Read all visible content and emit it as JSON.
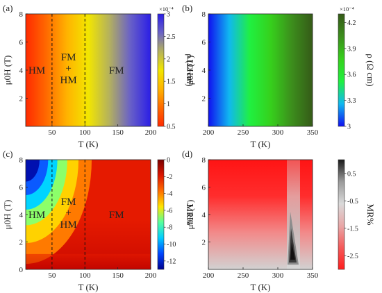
{
  "figure": {
    "panels": [
      "(a)",
      "(b)",
      "(c)",
      "(d)"
    ]
  },
  "chart_data": [
    {
      "type": "heatmap",
      "panel": "(a)",
      "xlabel": "T (K)",
      "ylabel": "μ0H (T)",
      "xlim": [
        10,
        200
      ],
      "ylim": [
        0,
        8
      ],
      "xticks": [
        "50",
        "100",
        "150",
        "200"
      ],
      "yticks": [
        "2",
        "4",
        "6",
        "8"
      ],
      "colorbar": {
        "label": "ρ (Ω cm)",
        "exponent": "×10⁻⁴",
        "ticks": [
          "0.5",
          "1",
          "1.5",
          "2",
          "2.5",
          "3"
        ],
        "range": [
          0.5,
          3
        ],
        "colors": [
          "#ff2a00",
          "#ff6a00",
          "#ffb400",
          "#f2e600",
          "#b5b25c",
          "#6a62c6",
          "#2b1ee6"
        ]
      },
      "dividers_T": [
        50,
        100
      ],
      "regions": [
        "HM",
        "FM",
        "+",
        "HM",
        "FM"
      ]
    },
    {
      "type": "heatmap",
      "panel": "(b)",
      "xlabel": "T (K)",
      "ylabel": "μ0H (T)",
      "xlim": [
        200,
        350
      ],
      "ylim": [
        0,
        8
      ],
      "xticks": [
        "200",
        "250",
        "300",
        "350"
      ],
      "yticks": [
        "2",
        "4",
        "6",
        "8"
      ],
      "colorbar": {
        "label": "ρ (Ω cm)",
        "exponent": "×10⁻⁴",
        "ticks": [
          "3",
          "3.3",
          "3.6",
          "3.9",
          "4.2"
        ],
        "range": [
          3.0,
          4.3
        ],
        "colors": [
          "#1010f0",
          "#10b8f0",
          "#20f040",
          "#36d01c",
          "#3c8e1c",
          "#355a18"
        ]
      }
    },
    {
      "type": "heatmap",
      "panel": "(c)",
      "xlabel": "T (K)",
      "ylabel": "μ0H (T)",
      "xlim": [
        10,
        200
      ],
      "ylim": [
        0,
        8
      ],
      "xticks": [
        "50",
        "100",
        "150",
        "200"
      ],
      "yticks": [
        "0",
        "2",
        "4",
        "6",
        "8"
      ],
      "colorbar": {
        "label": "MR%",
        "ticks": [
          "0",
          "-2",
          "-4",
          "-6",
          "-8",
          "-10",
          "-12"
        ],
        "range": [
          -13,
          0
        ],
        "colors": [
          "#00008f",
          "#0044ff",
          "#00ccff",
          "#55ff9e",
          "#ffe500",
          "#ff6e00",
          "#dd1500",
          "#7a0000"
        ]
      },
      "dividers_T": [
        50,
        100
      ],
      "regions": [
        "HM",
        "FM",
        "+",
        "HM",
        "FM"
      ]
    },
    {
      "type": "heatmap",
      "panel": "(d)",
      "xlabel": "T (K)",
      "ylabel": "μ0H (T)",
      "xlim": [
        200,
        350
      ],
      "ylim": [
        0,
        8
      ],
      "xticks": [
        "200",
        "250",
        "300",
        "350"
      ],
      "yticks": [
        "2",
        "4",
        "6",
        "8"
      ],
      "colorbar": {
        "label": "MR%",
        "ticks": [
          "0.5",
          "-0.5",
          "-1.5",
          "-2.5"
        ],
        "range": [
          -3,
          1
        ],
        "colors": [
          "#ff1e1e",
          "#f55a5a",
          "#e8a8a8",
          "#dadada",
          "#9a9a9a",
          "#1a1a1a"
        ]
      }
    }
  ]
}
